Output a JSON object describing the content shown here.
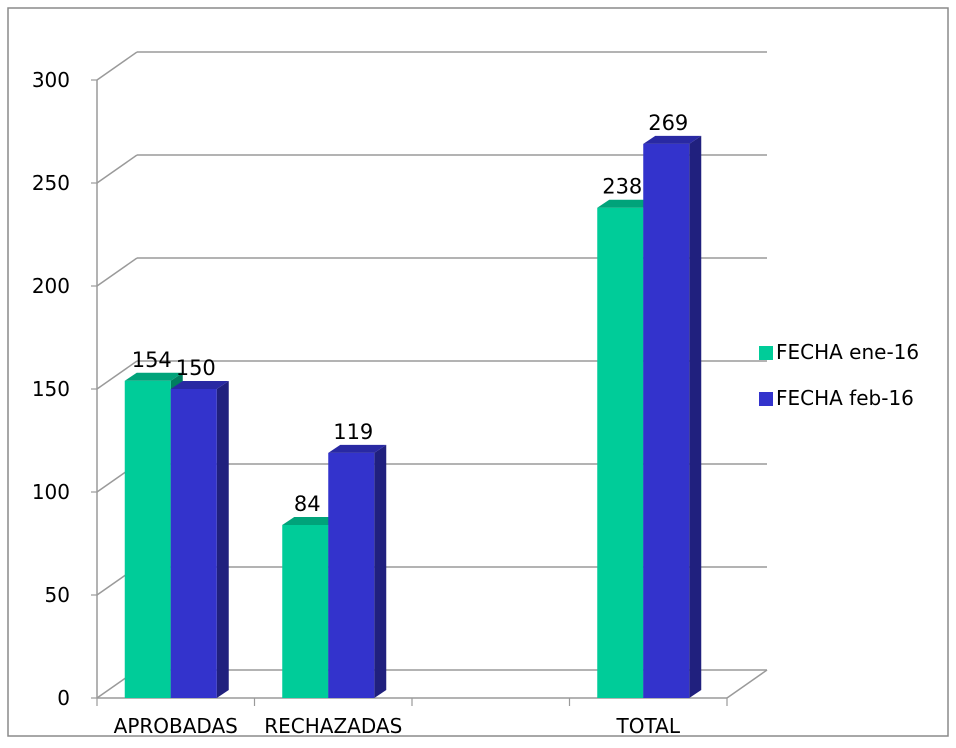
{
  "chart_data": {
    "type": "bar",
    "title": "",
    "xlabel": "",
    "ylabel": "",
    "categories": [
      "APROBADAS",
      "RECHAZADAS",
      "",
      "TOTAL"
    ],
    "series": [
      {
        "name": "FECHA ene-16",
        "values": [
          154,
          84,
          null,
          238
        ],
        "color": "#00cc99"
      },
      {
        "name": "FECHA feb-16",
        "values": [
          150,
          119,
          null,
          269
        ],
        "color": "#3333cc"
      }
    ],
    "ylim": [
      0,
      300
    ],
    "yticks": [
      0,
      50,
      100,
      150,
      200,
      250,
      300
    ],
    "grid": true,
    "legend_position": "right",
    "data_labels": true
  }
}
